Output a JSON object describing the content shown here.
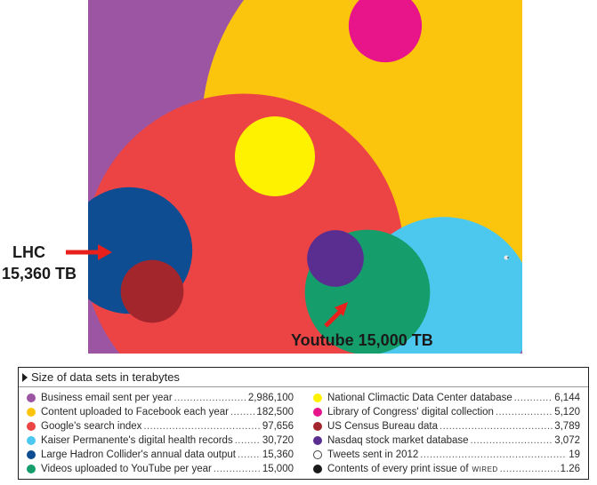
{
  "chart_data": {
    "type": "bubble",
    "unit": "terabytes",
    "background": "#b0b0b2",
    "series": [
      {
        "label": "Business email sent per year",
        "value": 2986100,
        "value_text": "2,986,100",
        "color": "#9b55a3"
      },
      {
        "label": "Content uploaded to Facebook each year",
        "value": 182500,
        "value_text": "182,500",
        "color": "#fcc50d"
      },
      {
        "label": "Google's search index",
        "value": 97656,
        "value_text": "97,656",
        "color": "#ec4444"
      },
      {
        "label": "Kaiser Permanente's digital health records",
        "value": 30720,
        "value_text": "30,720",
        "color": "#4cc8ef"
      },
      {
        "label": "Large Hadron Collider's annual data output",
        "value": 15360,
        "value_text": "15,360",
        "color": "#0e4d92"
      },
      {
        "label": "Videos uploaded to YouTube per year",
        "value": 15000,
        "value_text": "15,000",
        "color": "#159e6c"
      },
      {
        "label": "National Climactic Data Center database",
        "value": 6144,
        "value_text": "6,144",
        "color": "#fff200"
      },
      {
        "label": "Library of Congress' digital collection",
        "value": 5120,
        "value_text": "5,120",
        "color": "#e7148a"
      },
      {
        "label": "US Census Bureau data",
        "value": 3789,
        "value_text": "3,789",
        "color": "#a3262d"
      },
      {
        "label": "Nasdaq stock market database",
        "value": 3072,
        "value_text": "3,072",
        "color": "#5a2d91"
      },
      {
        "label": "Tweets sent in 2012",
        "value": 19,
        "value_text": "19",
        "color": "#ffffff",
        "hollow": true
      },
      {
        "label": "Contents of every print issue of",
        "label_suffix": "wired",
        "value": 1.26,
        "value_text": "1.26",
        "color": "#1a1a1a"
      }
    ]
  },
  "legend": {
    "title": "Size of data sets in terabytes"
  },
  "annotations": {
    "lhc_line1": "LHC",
    "lhc_line2": "15,360 TB",
    "youtube": "Youtube 15,000 TB",
    "arrow_color": "#e8201c"
  }
}
